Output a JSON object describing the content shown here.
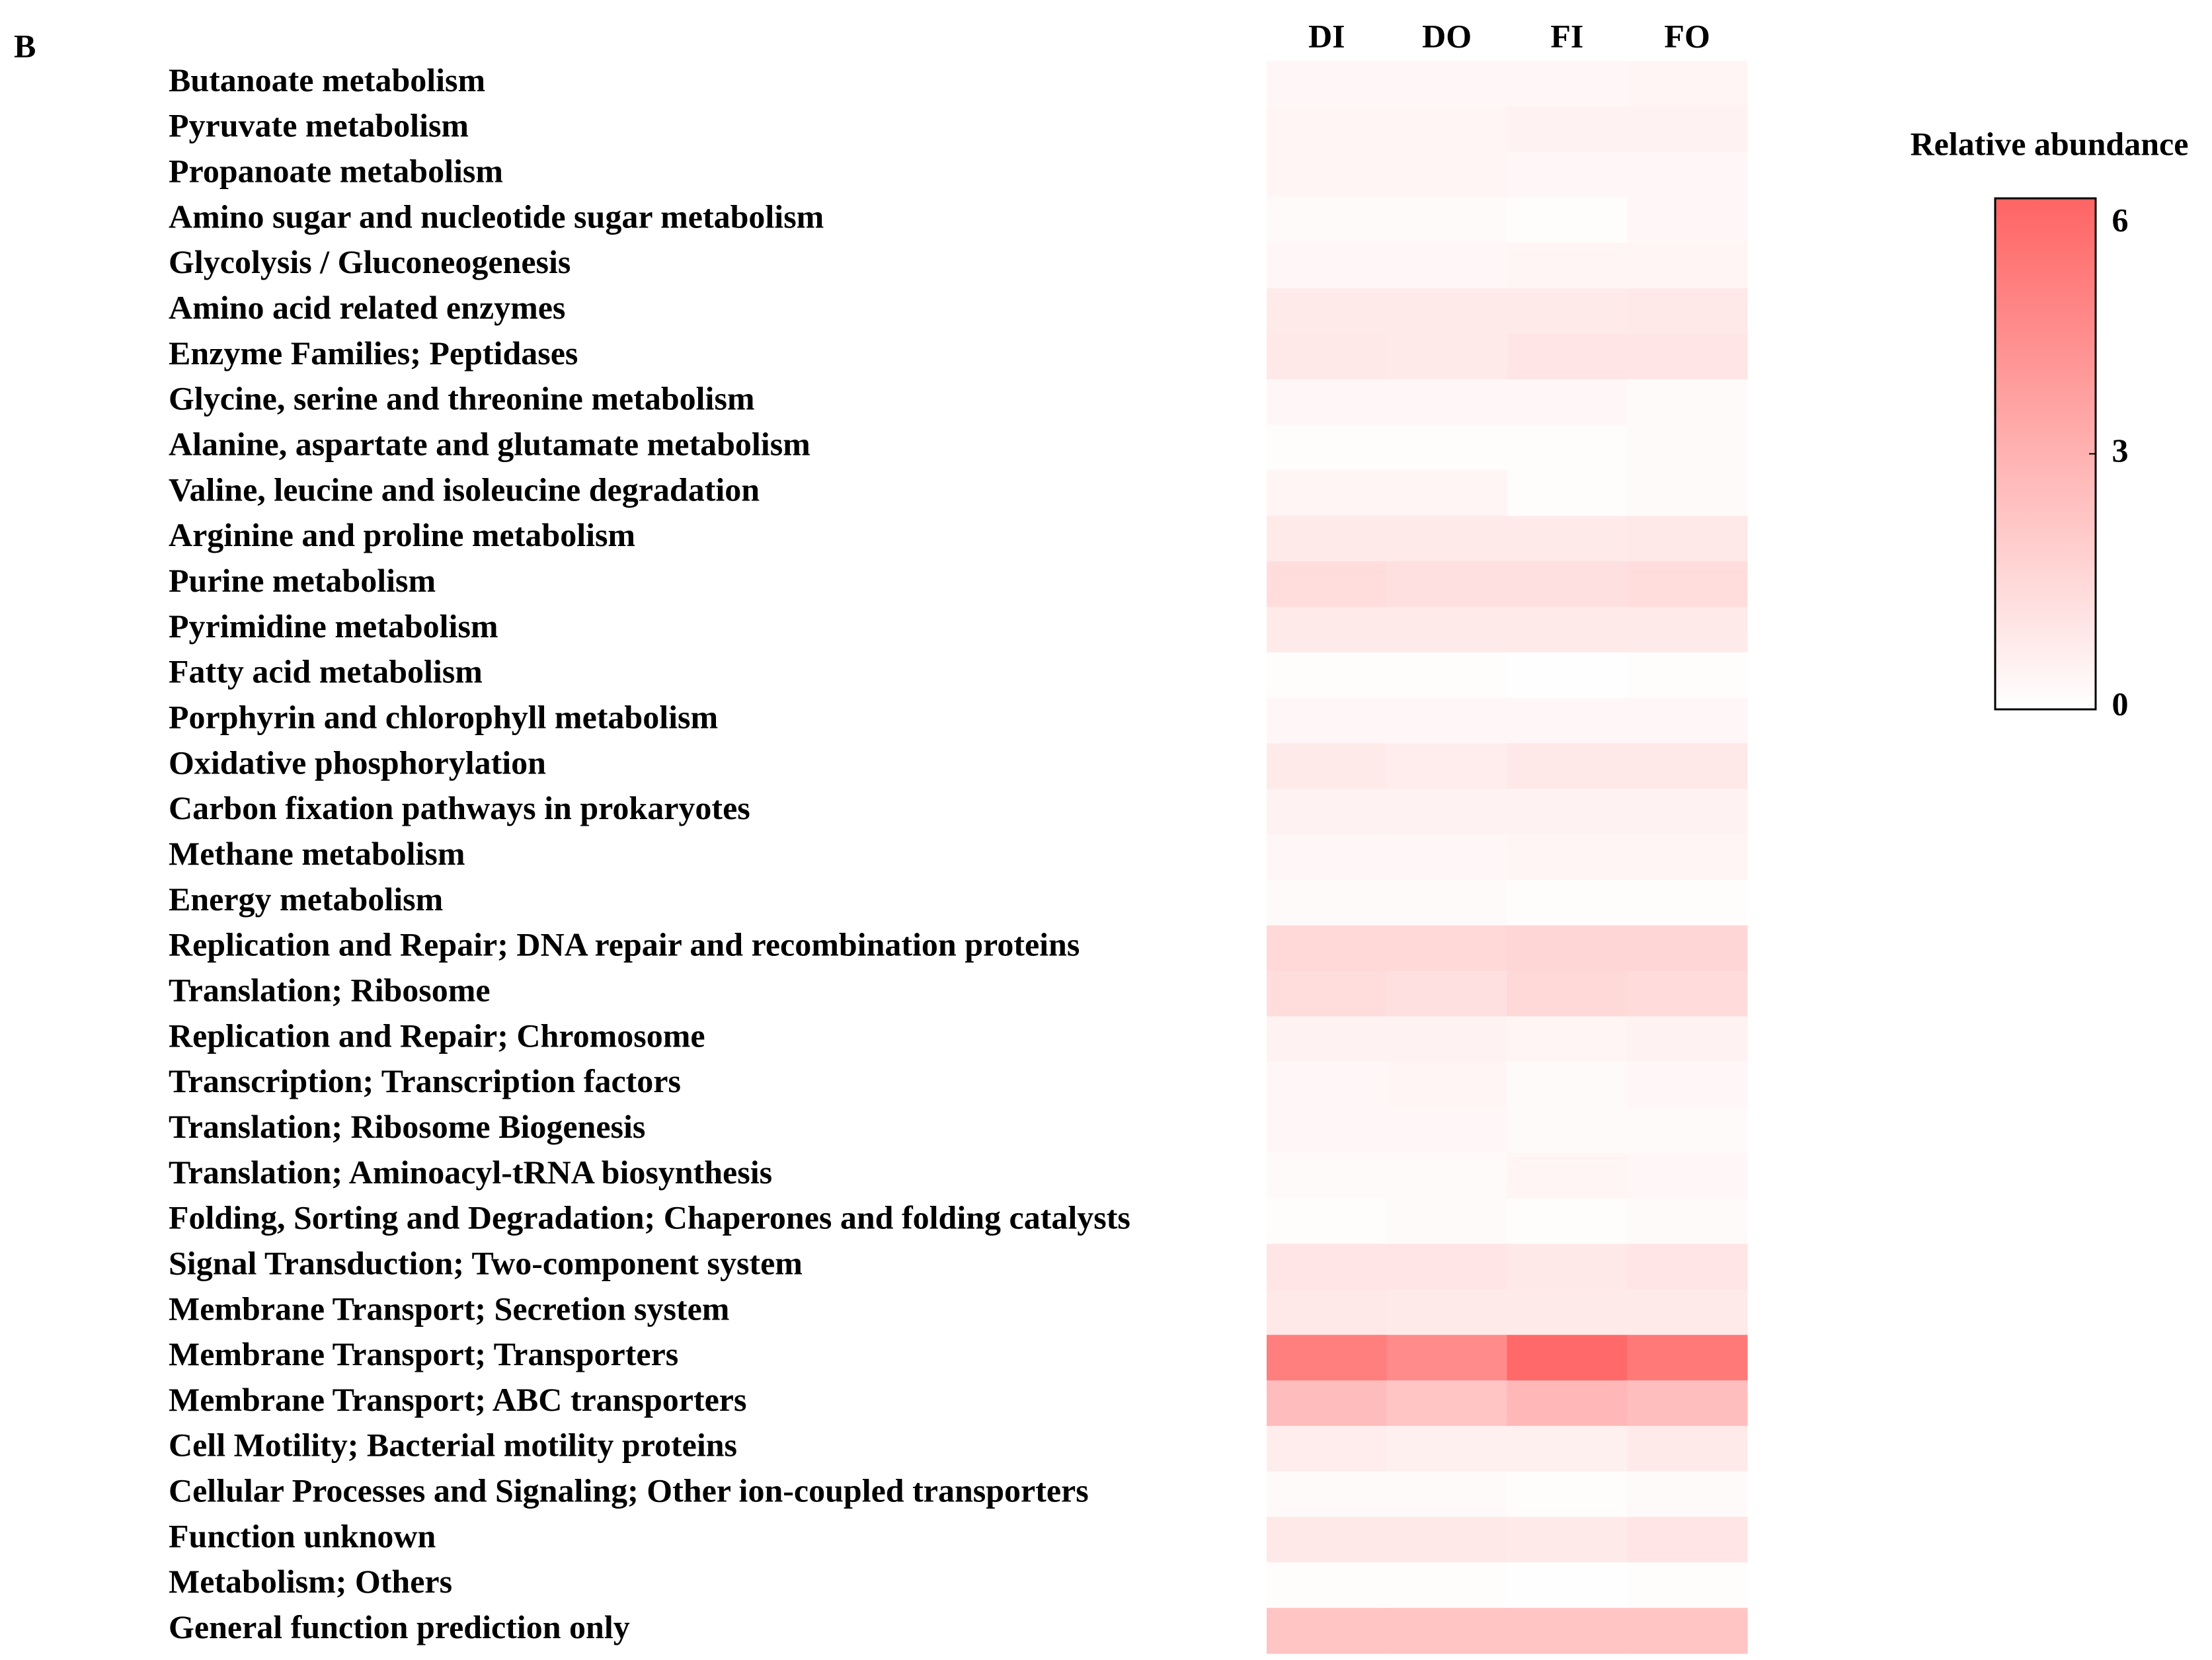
{
  "chart_data": {
    "type": "heatmap",
    "panel_label": "B",
    "columns": [
      "DI",
      "DO",
      "FI",
      "FO"
    ],
    "rows": [
      "Butanoate metabolism",
      "Pyruvate metabolism",
      "Propanoate metabolism",
      "Amino sugar and nucleotide sugar metabolism",
      "Glycolysis / Gluconeogenesis",
      "Amino acid related enzymes",
      "Enzyme Families; Peptidases",
      "Glycine, serine and threonine metabolism",
      "Alanine, aspartate and glutamate metabolism",
      "Valine, leucine and isoleucine degradation",
      "Arginine and proline metabolism",
      "Purine metabolism",
      "Pyrimidine metabolism",
      "Fatty acid metabolism",
      "Porphyrin and chlorophyll metabolism",
      "Oxidative phosphorylation",
      "Carbon fixation pathways in prokaryotes",
      "Methane metabolism",
      "Energy metabolism",
      "Replication and Repair; DNA repair and recombination proteins",
      "Translation; Ribosome",
      "Replication and Repair; Chromosome",
      "Transcription; Transcription factors",
      "Translation; Ribosome Biogenesis",
      "Translation; Aminoacyl-tRNA biosynthesis",
      "Folding, Sorting and Degradation; Chaperones and folding catalysts",
      "Signal Transduction; Two-component system",
      "Membrane Transport; Secretion system",
      "Membrane Transport; Transporters",
      "Membrane Transport; ABC transporters",
      "Cell Motility; Bacterial motility proteins",
      "Cellular Processes and Signaling; Other ion-coupled transporters",
      "Function unknown",
      "Metabolism; Others",
      "General function prediction only"
    ],
    "values": [
      [
        0.3,
        0.3,
        0.3,
        0.4
      ],
      [
        0.4,
        0.4,
        0.5,
        0.5
      ],
      [
        0.4,
        0.4,
        0.3,
        0.3
      ],
      [
        0.2,
        0.2,
        0.1,
        0.3
      ],
      [
        0.3,
        0.3,
        0.4,
        0.4
      ],
      [
        0.8,
        0.8,
        0.8,
        0.9
      ],
      [
        0.9,
        0.8,
        1.0,
        1.0
      ],
      [
        0.3,
        0.3,
        0.3,
        0.2
      ],
      [
        0.1,
        0.1,
        0.1,
        0.2
      ],
      [
        0.4,
        0.4,
        0.1,
        0.2
      ],
      [
        0.8,
        0.8,
        0.8,
        0.9
      ],
      [
        1.3,
        1.2,
        1.2,
        1.3
      ],
      [
        0.8,
        0.8,
        0.8,
        0.8
      ],
      [
        0.1,
        0.1,
        0.05,
        0.1
      ],
      [
        0.3,
        0.3,
        0.3,
        0.3
      ],
      [
        0.8,
        0.7,
        0.9,
        0.9
      ],
      [
        0.5,
        0.5,
        0.5,
        0.5
      ],
      [
        0.3,
        0.3,
        0.4,
        0.4
      ],
      [
        0.2,
        0.2,
        0.1,
        0.1
      ],
      [
        1.5,
        1.5,
        1.6,
        1.6
      ],
      [
        1.3,
        1.2,
        1.5,
        1.4
      ],
      [
        0.5,
        0.5,
        0.4,
        0.5
      ],
      [
        0.3,
        0.4,
        0.2,
        0.3
      ],
      [
        0.3,
        0.3,
        0.2,
        0.2
      ],
      [
        0.2,
        0.2,
        0.4,
        0.3
      ],
      [
        0.1,
        0.2,
        0.1,
        0.2
      ],
      [
        1.0,
        1.0,
        0.9,
        1.0
      ],
      [
        0.9,
        0.8,
        0.8,
        0.8
      ],
      [
        5.0,
        4.5,
        5.8,
        5.2
      ],
      [
        2.6,
        2.3,
        2.8,
        2.5
      ],
      [
        0.7,
        0.6,
        0.6,
        0.8
      ],
      [
        0.2,
        0.2,
        0.1,
        0.2
      ],
      [
        0.9,
        0.9,
        0.8,
        1.0
      ],
      [
        0.1,
        0.1,
        0.05,
        0.1
      ],
      [
        2.3,
        2.3,
        2.3,
        2.3
      ]
    ],
    "colorbar_title": "Relative abundance",
    "zlim": [
      0,
      6
    ],
    "zticks": [
      0,
      3,
      6
    ],
    "colors": {
      "low": "#ffffff",
      "high": "#ff6464"
    }
  }
}
